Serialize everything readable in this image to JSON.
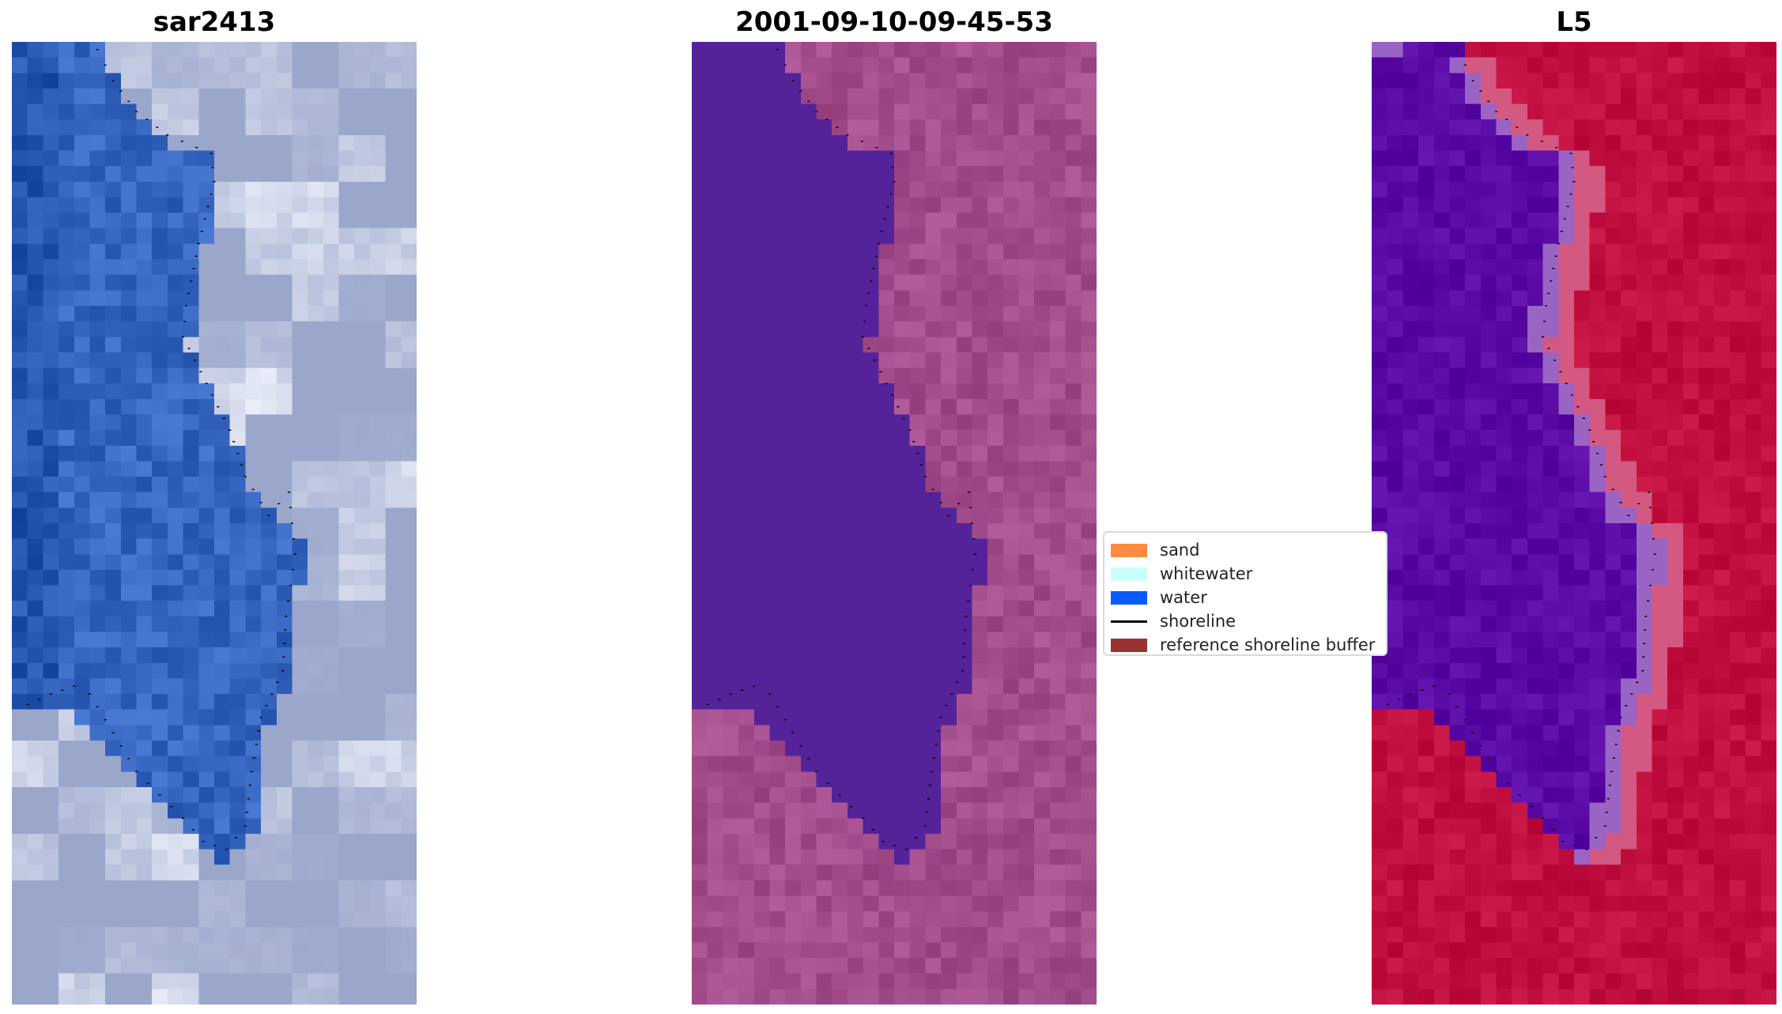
{
  "figure": {
    "panels": [
      {
        "title": "sar2413",
        "colormap": "rgb"
      },
      {
        "title": "2001-09-10-09-45-53",
        "colormap": "classified"
      },
      {
        "title": "L5",
        "colormap": "index"
      }
    ],
    "legend": {
      "items": [
        {
          "label": "sand",
          "kind": "patch",
          "color": "#ff8c40"
        },
        {
          "label": "whitewater",
          "kind": "patch",
          "color": "#c8fffa"
        },
        {
          "label": "water",
          "kind": "patch",
          "color": "#0a5aff"
        },
        {
          "label": "shoreline",
          "kind": "line",
          "color": "#000000"
        },
        {
          "label": "reference shoreline buffer",
          "kind": "patch",
          "color": "#993333"
        }
      ]
    },
    "colors": {
      "water_class": "#54239a",
      "land_class": "#a34d8c",
      "water_index": "#5a0aa5",
      "land_index": "#c1103f",
      "rgb_water": "#2f5eb8",
      "rgb_land": "#9aa7cb"
    }
  }
}
